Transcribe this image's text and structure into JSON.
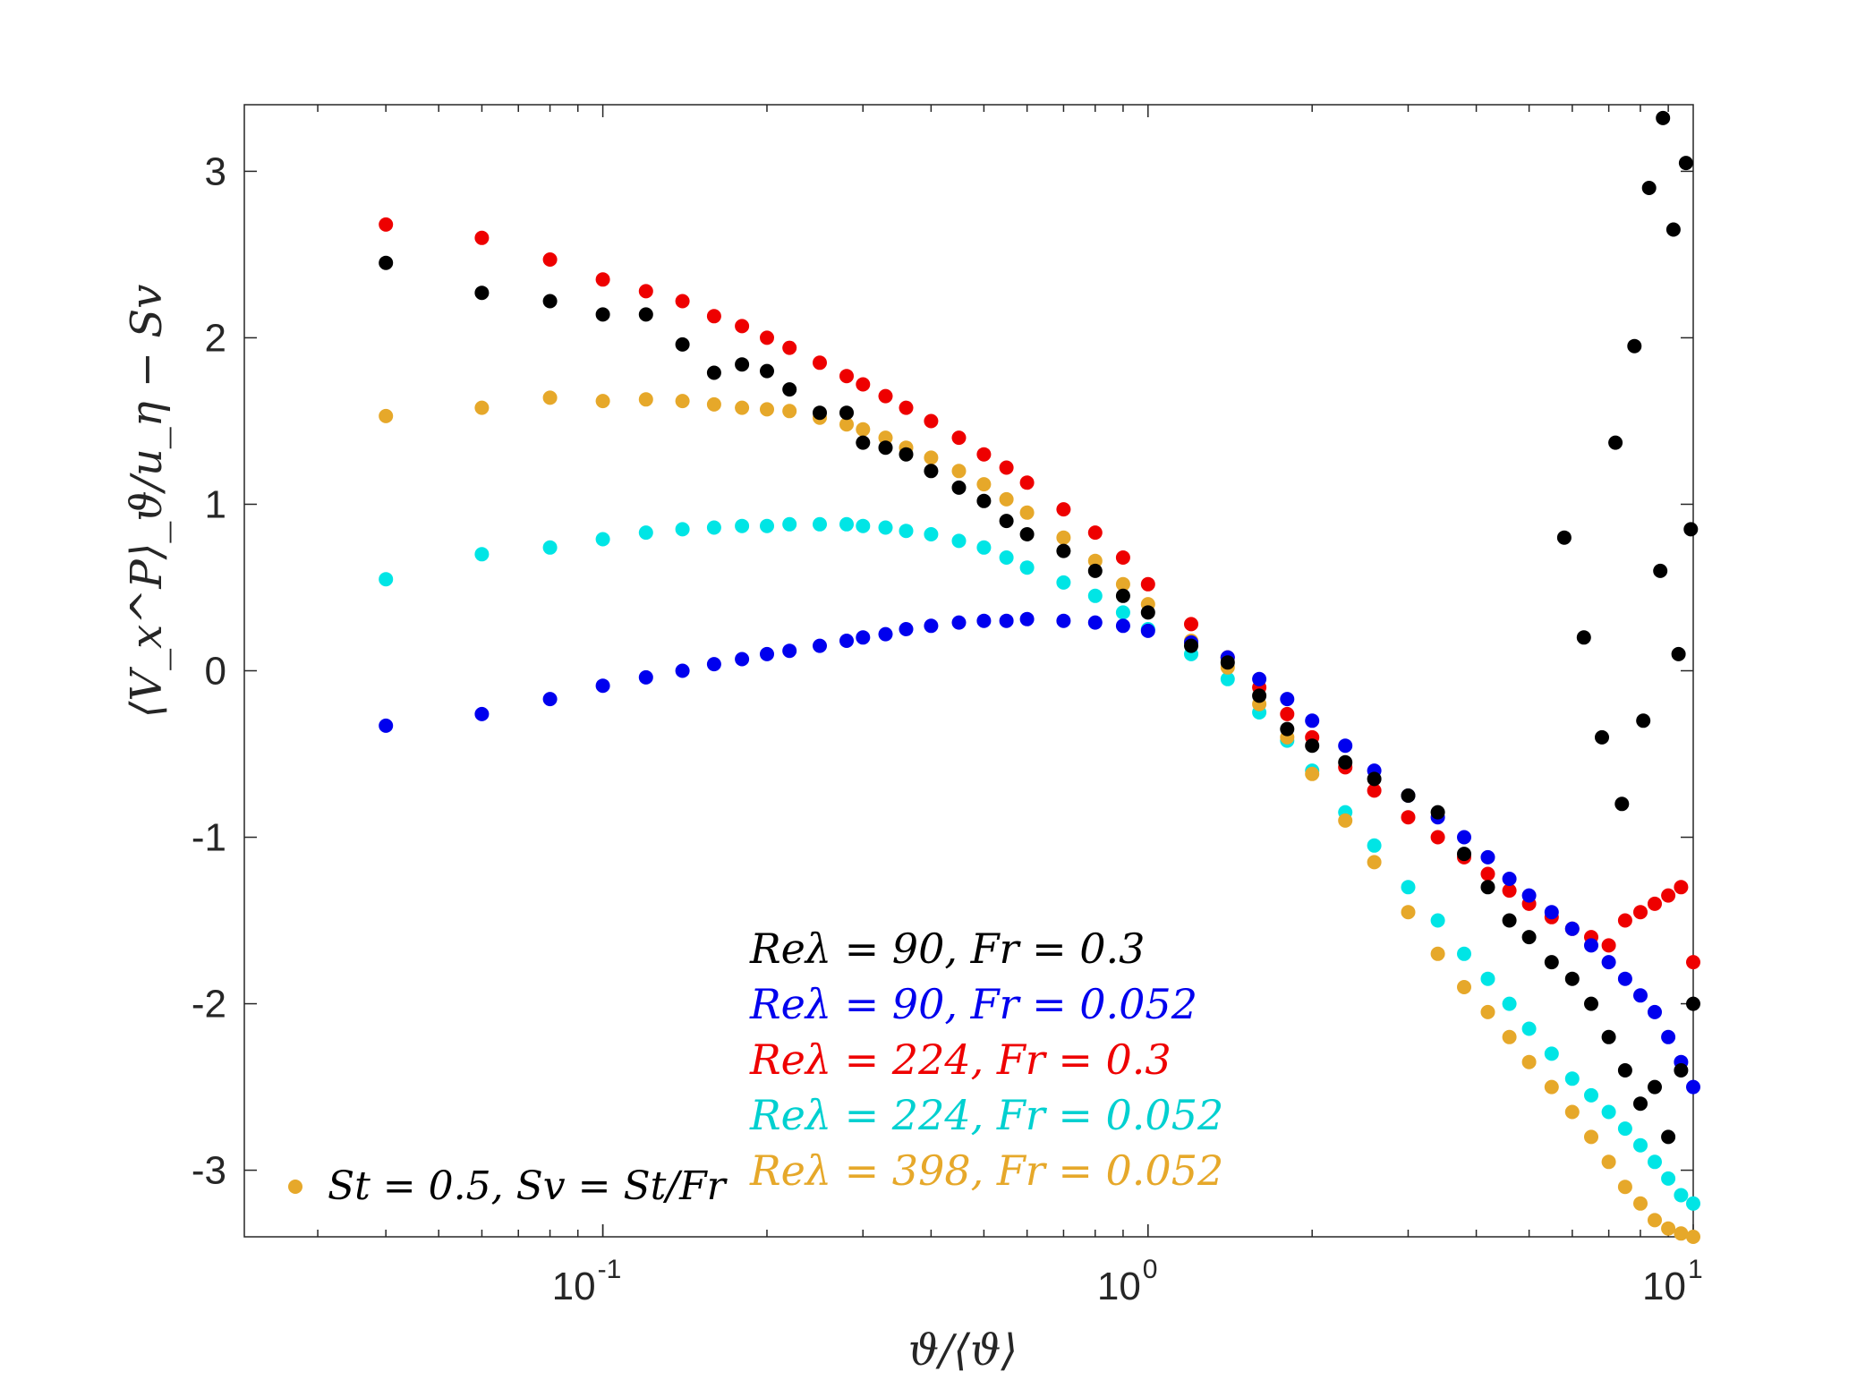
{
  "chart_data": {
    "type": "scatter",
    "xscale": "log",
    "xlim": [
      0.022,
      10
    ],
    "ylim": [
      -3.4,
      3.4
    ],
    "xlabel": "ϑ/⟨ϑ⟩",
    "ylabel": "⟨V_x^P⟩_ϑ/u_η − Sv",
    "yticks": [
      -3,
      -2,
      -1,
      0,
      1,
      2,
      3
    ],
    "ytick_labels": [
      "-3",
      "-2",
      "-1",
      "0",
      "1",
      "2",
      "3"
    ],
    "xtick_bases": [
      "10",
      "10",
      "10"
    ],
    "xtick_exponents": [
      "-1",
      "0",
      "1"
    ],
    "xticks": [
      0.1,
      1,
      10
    ],
    "note": "St = 0.5, Sv = St/Fr",
    "note_marker_color": "#e6a82a",
    "series": [
      {
        "name": "Reλ = 90, Fr = 0.3",
        "color": "#000000",
        "x": [
          0.04,
          0.06,
          0.08,
          0.1,
          0.12,
          0.14,
          0.16,
          0.18,
          0.2,
          0.22,
          0.25,
          0.28,
          0.3,
          0.33,
          0.36,
          0.4,
          0.45,
          0.5,
          0.55,
          0.6,
          0.7,
          0.8,
          0.9,
          1.0,
          1.2,
          1.4,
          1.6,
          1.8,
          2.0,
          2.3,
          2.6,
          3.0,
          3.4,
          3.8,
          4.2,
          4.6,
          5.0,
          5.5,
          6.0,
          6.5,
          7.0,
          7.5,
          8.0,
          8.5,
          9.0,
          9.5,
          10.0,
          7.2,
          7.8,
          8.3,
          8.8,
          9.2,
          9.7,
          5.8,
          6.3,
          6.8,
          7.4,
          8.1,
          8.7,
          9.4,
          9.9
        ],
        "y": [
          2.45,
          2.27,
          2.22,
          2.14,
          2.14,
          1.96,
          1.79,
          1.84,
          1.8,
          1.69,
          1.55,
          1.55,
          1.37,
          1.34,
          1.3,
          1.2,
          1.1,
          1.02,
          0.9,
          0.82,
          0.72,
          0.6,
          0.45,
          0.35,
          0.15,
          0.05,
          -0.15,
          -0.35,
          -0.45,
          -0.55,
          -0.65,
          -0.75,
          -0.85,
          -1.1,
          -1.3,
          -1.5,
          -1.6,
          -1.75,
          -1.85,
          -2.0,
          -2.2,
          -2.4,
          -2.6,
          -2.5,
          -2.8,
          -2.4,
          -2.0,
          1.37,
          1.95,
          2.9,
          3.32,
          2.65,
          3.05,
          0.8,
          0.2,
          -0.4,
          -0.8,
          -0.3,
          0.6,
          0.1,
          0.85
        ]
      },
      {
        "name": "Reλ = 90, Fr = 0.052",
        "color": "#0000ee",
        "x": [
          0.04,
          0.06,
          0.08,
          0.1,
          0.12,
          0.14,
          0.16,
          0.18,
          0.2,
          0.22,
          0.25,
          0.28,
          0.3,
          0.33,
          0.36,
          0.4,
          0.45,
          0.5,
          0.55,
          0.6,
          0.7,
          0.8,
          0.9,
          1.0,
          1.2,
          1.4,
          1.6,
          1.8,
          2.0,
          2.3,
          2.6,
          3.0,
          3.4,
          3.8,
          4.2,
          4.6,
          5.0,
          5.5,
          6.0,
          6.5,
          7.0,
          7.5,
          8.0,
          8.5,
          9.0,
          9.5,
          10.0
        ],
        "y": [
          -0.33,
          -0.26,
          -0.17,
          -0.09,
          -0.04,
          0.0,
          0.04,
          0.07,
          0.1,
          0.12,
          0.15,
          0.18,
          0.2,
          0.22,
          0.25,
          0.27,
          0.29,
          0.3,
          0.3,
          0.31,
          0.3,
          0.29,
          0.27,
          0.24,
          0.17,
          0.08,
          -0.05,
          -0.17,
          -0.3,
          -0.45,
          -0.6,
          -0.75,
          -0.88,
          -1.0,
          -1.12,
          -1.25,
          -1.35,
          -1.45,
          -1.55,
          -1.65,
          -1.75,
          -1.85,
          -1.95,
          -2.05,
          -2.2,
          -2.35,
          -2.5
        ]
      },
      {
        "name": "Reλ = 224, Fr = 0.3",
        "color": "#ee0000",
        "x": [
          0.04,
          0.06,
          0.08,
          0.1,
          0.12,
          0.14,
          0.16,
          0.18,
          0.2,
          0.22,
          0.25,
          0.28,
          0.3,
          0.33,
          0.36,
          0.4,
          0.45,
          0.5,
          0.55,
          0.6,
          0.7,
          0.8,
          0.9,
          1.0,
          1.2,
          1.4,
          1.6,
          1.8,
          2.0,
          2.3,
          2.6,
          3.0,
          3.4,
          3.8,
          4.2,
          4.6,
          5.0,
          5.5,
          6.0,
          6.5,
          7.0,
          7.5,
          8.0,
          8.5,
          9.0,
          9.5,
          10.0
        ],
        "y": [
          2.68,
          2.6,
          2.47,
          2.35,
          2.28,
          2.22,
          2.13,
          2.07,
          2.0,
          1.94,
          1.85,
          1.77,
          1.72,
          1.65,
          1.58,
          1.5,
          1.4,
          1.3,
          1.22,
          1.13,
          0.97,
          0.83,
          0.68,
          0.52,
          0.28,
          0.08,
          -0.1,
          -0.26,
          -0.4,
          -0.58,
          -0.72,
          -0.88,
          -1.0,
          -1.12,
          -1.22,
          -1.32,
          -1.4,
          -1.48,
          -1.55,
          -1.6,
          -1.65,
          -1.5,
          -1.45,
          -1.4,
          -1.35,
          -1.3,
          -1.75
        ]
      },
      {
        "name": "Reλ = 224, Fr = 0.052",
        "color": "#00e5e5",
        "x": [
          0.04,
          0.06,
          0.08,
          0.1,
          0.12,
          0.14,
          0.16,
          0.18,
          0.2,
          0.22,
          0.25,
          0.28,
          0.3,
          0.33,
          0.36,
          0.4,
          0.45,
          0.5,
          0.55,
          0.6,
          0.7,
          0.8,
          0.9,
          1.0,
          1.2,
          1.4,
          1.6,
          1.8,
          2.0,
          2.3,
          2.6,
          3.0,
          3.4,
          3.8,
          4.2,
          4.6,
          5.0,
          5.5,
          6.0,
          6.5,
          7.0,
          7.5,
          8.0,
          8.5,
          9.0,
          9.5,
          10.0
        ],
        "y": [
          0.55,
          0.7,
          0.74,
          0.79,
          0.83,
          0.85,
          0.86,
          0.87,
          0.87,
          0.88,
          0.88,
          0.88,
          0.87,
          0.86,
          0.84,
          0.82,
          0.78,
          0.74,
          0.68,
          0.62,
          0.53,
          0.45,
          0.35,
          0.25,
          0.1,
          -0.05,
          -0.25,
          -0.42,
          -0.6,
          -0.85,
          -1.05,
          -1.3,
          -1.5,
          -1.7,
          -1.85,
          -2.0,
          -2.15,
          -2.3,
          -2.45,
          -2.55,
          -2.65,
          -2.75,
          -2.85,
          -2.95,
          -3.05,
          -3.15,
          -3.2
        ]
      },
      {
        "name": "Reλ = 398, Fr = 0.052",
        "color": "#e6a82a",
        "x": [
          0.04,
          0.06,
          0.08,
          0.1,
          0.12,
          0.14,
          0.16,
          0.18,
          0.2,
          0.22,
          0.25,
          0.28,
          0.3,
          0.33,
          0.36,
          0.4,
          0.45,
          0.5,
          0.55,
          0.6,
          0.7,
          0.8,
          0.9,
          1.0,
          1.2,
          1.4,
          1.6,
          1.8,
          2.0,
          2.3,
          2.6,
          3.0,
          3.4,
          3.8,
          4.2,
          4.6,
          5.0,
          5.5,
          6.0,
          6.5,
          7.0,
          7.5,
          8.0,
          8.5,
          9.0,
          9.5,
          10.0
        ],
        "y": [
          1.53,
          1.58,
          1.64,
          1.62,
          1.63,
          1.62,
          1.6,
          1.58,
          1.57,
          1.56,
          1.52,
          1.48,
          1.45,
          1.4,
          1.34,
          1.28,
          1.2,
          1.12,
          1.03,
          0.95,
          0.8,
          0.66,
          0.52,
          0.4,
          0.18,
          0.02,
          -0.2,
          -0.4,
          -0.62,
          -0.9,
          -1.15,
          -1.45,
          -1.7,
          -1.9,
          -2.05,
          -2.2,
          -2.35,
          -2.5,
          -2.65,
          -2.8,
          -2.95,
          -3.1,
          -3.2,
          -3.3,
          -3.35,
          -3.38,
          -3.4
        ]
      }
    ]
  }
}
